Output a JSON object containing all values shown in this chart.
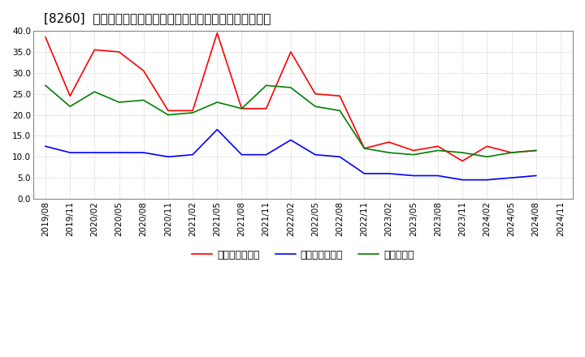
{
  "title": "[8260]  売上債権回転率、買入債務回転率、在庫回転率の推移",
  "dates": [
    "2019/08",
    "2019/11",
    "2020/02",
    "2020/05",
    "2020/08",
    "2020/11",
    "2021/02",
    "2021/05",
    "2021/08",
    "2021/11",
    "2022/02",
    "2022/05",
    "2022/08",
    "2022/11",
    "2023/02",
    "2023/05",
    "2023/08",
    "2023/11",
    "2024/02",
    "2024/05",
    "2024/08",
    "2024/11"
  ],
  "receivables_turnover": [
    38.5,
    24.5,
    35.5,
    35.0,
    30.5,
    21.0,
    21.0,
    39.5,
    21.5,
    21.5,
    35.0,
    25.0,
    24.5,
    12.0,
    13.5,
    11.5,
    12.5,
    9.0,
    12.5,
    11.0,
    11.5,
    null
  ],
  "payables_turnover": [
    12.5,
    11.0,
    11.0,
    11.0,
    11.0,
    10.0,
    10.5,
    16.5,
    10.5,
    10.5,
    14.0,
    10.5,
    10.0,
    6.0,
    6.0,
    5.5,
    5.5,
    4.5,
    4.5,
    5.0,
    5.5,
    null
  ],
  "inventory_turnover": [
    27.0,
    22.0,
    25.5,
    23.0,
    23.5,
    20.0,
    20.5,
    23.0,
    21.5,
    27.0,
    26.5,
    22.0,
    21.0,
    12.0,
    11.0,
    10.5,
    11.5,
    11.0,
    10.0,
    11.0,
    11.5,
    null
  ],
  "ylim": [
    0.0,
    40.0
  ],
  "yticks": [
    0.0,
    5.0,
    10.0,
    15.0,
    20.0,
    25.0,
    30.0,
    35.0,
    40.0
  ],
  "red_color": "#ff0000",
  "blue_color": "#0000ff",
  "green_color": "#008000",
  "bg_color": "#ffffff",
  "grid_color": "#aaaaaa",
  "legend_label_receivables": "売上債権回転率",
  "legend_label_payables": "買入債務回転率",
  "legend_label_inventory": "在庫回転率",
  "title_fontsize": 11,
  "axis_fontsize": 7.5,
  "legend_fontsize": 9
}
